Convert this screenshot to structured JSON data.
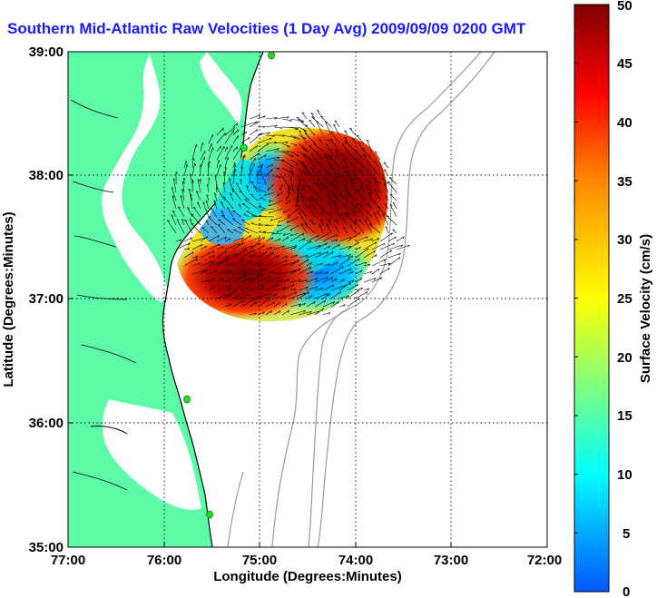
{
  "title": "Southern Mid-Atlantic Raw Velocities (1 Day Avg) 2009/09/09 0200 GMT",
  "axes": {
    "xlabel": "Longitude (Degrees:Minutes)",
    "ylabel": "Latitude (Degrees:Minutes)",
    "x_ticks": [
      "77:00",
      "76:00",
      "75:00",
      "74:00",
      "73:00",
      "72:00"
    ],
    "y_ticks": [
      "39:00",
      "38:00",
      "37:00",
      "36:00",
      "35:00"
    ],
    "xlim": [
      "77:00 W",
      "72:00 W"
    ],
    "ylim": [
      "35:00 N",
      "39:00 N"
    ],
    "grid": "dotted"
  },
  "colorbar": {
    "label": "Surface Velocity (cm/s)",
    "ticks": [
      "50",
      "45",
      "40",
      "35",
      "30",
      "25",
      "20",
      "15",
      "10",
      "5",
      "0"
    ],
    "range": [
      0,
      50
    ],
    "colors": [
      "#0055ff",
      "#00ffff",
      "#ffff00",
      "#ff8800",
      "#ff0000",
      "#800000"
    ]
  },
  "colors": {
    "land": "#5dfaa8",
    "ocean": "#ffffff",
    "bathymetry": "#999999",
    "stations": "#22dd22",
    "title": "#1a1aff"
  },
  "chart_data": {
    "type": "heatmap",
    "title": "Southern Mid-Atlantic Raw Velocities (1 Day Avg) 2009/09/09 0200 GMT",
    "xlabel": "Longitude (Degrees:Minutes)",
    "ylabel": "Latitude (Degrees:Minutes)",
    "value_range_cm_s": [
      0,
      50
    ],
    "regions": [
      {
        "lon": -74.45,
        "lat": 37.8,
        "speed": 48
      },
      {
        "lon": -75.55,
        "lat": 37.15,
        "speed": 47
      },
      {
        "lon": -74.85,
        "lat": 37.95,
        "speed": 8
      },
      {
        "lon": -74.55,
        "lat": 37.05,
        "speed": 6
      },
      {
        "lon": -75.05,
        "lat": 37.45,
        "speed": 22
      }
    ],
    "stations": [
      {
        "lon": -74.9,
        "lat": 39.05
      },
      {
        "lon": -75.15,
        "lat": 38.2
      },
      {
        "lon": -75.75,
        "lat": 36.18
      },
      {
        "lon": -75.5,
        "lat": 35.25
      }
    ]
  }
}
